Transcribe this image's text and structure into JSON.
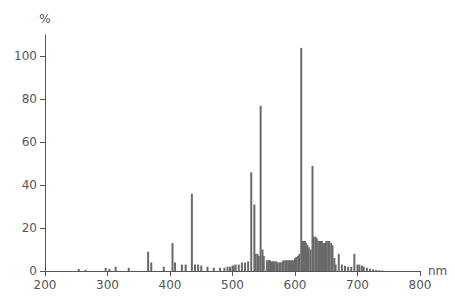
{
  "chart_data": {
    "type": "bar",
    "x": [
      254,
      265,
      297,
      303,
      313,
      334,
      365,
      370,
      390,
      404,
      408,
      419,
      425,
      435,
      440,
      445,
      450,
      460,
      470,
      480,
      487,
      492,
      496,
      500,
      502,
      505,
      510,
      515,
      520,
      525,
      530,
      535,
      537,
      540,
      542,
      545,
      548,
      550,
      555,
      558,
      560,
      563,
      565,
      567,
      570,
      572,
      575,
      577,
      580,
      582,
      585,
      587,
      590,
      592,
      595,
      597,
      600,
      602,
      605,
      607,
      610,
      612,
      614,
      616,
      618,
      620,
      622,
      625,
      628,
      630,
      633,
      635,
      638,
      640,
      643,
      645,
      648,
      650,
      653,
      655,
      658,
      660,
      663,
      665,
      670,
      675,
      680,
      685,
      690,
      695,
      700,
      703,
      707,
      710,
      715,
      720,
      725,
      730,
      735,
      740
    ],
    "values": [
      1.0,
      0.5,
      1.5,
      1.0,
      2.0,
      1.5,
      9.0,
      4.0,
      2.0,
      13.0,
      4.0,
      3.0,
      3.0,
      36.0,
      3.0,
      3.0,
      2.5,
      2.0,
      1.5,
      1.5,
      1.5,
      2.0,
      2.0,
      2.5,
      2.5,
      3.0,
      3.0,
      4.0,
      4.0,
      4.5,
      46.0,
      31.0,
      8.0,
      8.0,
      7.0,
      77.0,
      10.0,
      7.0,
      5.0,
      5.0,
      5.0,
      4.5,
      4.5,
      4.5,
      4.5,
      4.0,
      4.0,
      4.0,
      4.5,
      5.0,
      5.0,
      5.0,
      5.0,
      5.0,
      5.0,
      5.0,
      6.0,
      6.5,
      7.0,
      8.0,
      104.0,
      14.0,
      14.0,
      14.0,
      13.0,
      12.0,
      11.0,
      10.0,
      49.0,
      16.0,
      16.0,
      15.0,
      14.0,
      14.0,
      14.0,
      13.0,
      13.0,
      14.0,
      14.0,
      14.0,
      13.0,
      12.0,
      6.0,
      3.0,
      8.0,
      3.0,
      2.5,
      2.0,
      2.0,
      8.0,
      3.0,
      3.0,
      2.5,
      2.0,
      1.5,
      1.0,
      0.8,
      0.5,
      0.3,
      0.2
    ],
    "color": "#696969",
    "xlabel": "nm",
    "ylabel": "%",
    "xlim": [
      200,
      800
    ],
    "ylim": [
      0,
      110
    ],
    "xticks": [
      200,
      300,
      400,
      500,
      600,
      700,
      800
    ],
    "yticks": [
      0,
      20,
      40,
      60,
      80,
      100
    ],
    "grid": false
  }
}
